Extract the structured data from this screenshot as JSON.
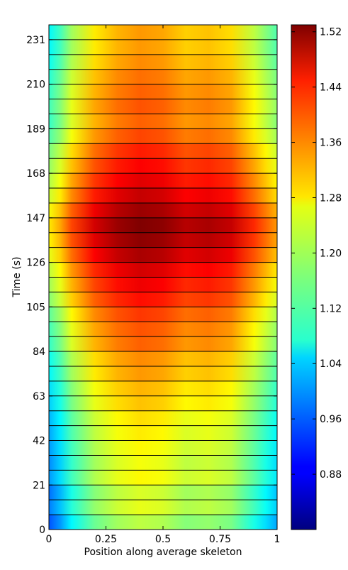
{
  "chart_data": {
    "type": "heatmap",
    "title": "",
    "xlabel": "Position along average skeleton",
    "ylabel": "Time (s)",
    "xlim": [
      0,
      1
    ],
    "ylim": [
      0,
      238
    ],
    "x_ticks": [
      0,
      0.25,
      0.5,
      0.75,
      1
    ],
    "x_tick_labels": [
      "0",
      "0.25",
      "0.5",
      "0.75",
      "1"
    ],
    "y_ticks": [
      0,
      21,
      42,
      63,
      84,
      105,
      126,
      147,
      168,
      189,
      210,
      231
    ],
    "y_tick_labels": [
      "0",
      "21",
      "42",
      "63",
      "84",
      "105",
      "126",
      "147",
      "168",
      "189",
      "210",
      "231"
    ],
    "colorbar": {
      "colormap": "jet",
      "vmin": 0.8,
      "vmax": 1.53,
      "ticks": [
        0.88,
        0.96,
        1.04,
        1.12,
        1.2,
        1.28,
        1.36,
        1.44,
        1.52
      ],
      "tick_labels": [
        "0.88",
        "0.96",
        "1.04",
        "1.12",
        "1.20",
        "1.28",
        "1.36",
        "1.44",
        "1.52"
      ]
    },
    "row_boundaries_s": [
      0,
      7,
      14,
      21,
      28,
      35,
      42,
      49,
      56,
      63,
      70,
      77,
      84,
      91,
      98,
      105,
      112,
      119,
      126,
      133,
      140,
      147,
      154,
      161,
      168,
      175,
      182,
      189,
      196,
      203,
      210,
      217,
      224,
      231,
      238
    ],
    "row_mean_values": [
      1.15,
      1.18,
      1.17,
      1.2,
      1.19,
      1.2,
      1.21,
      1.22,
      1.24,
      1.25,
      1.27,
      1.28,
      1.31,
      1.32,
      1.34,
      1.37,
      1.39,
      1.41,
      1.44,
      1.46,
      1.47,
      1.45,
      1.42,
      1.4,
      1.38,
      1.36,
      1.33,
      1.31,
      1.32,
      1.31,
      1.3,
      1.28,
      1.27,
      1.27
    ],
    "profile_positions": [
      0,
      0.05,
      0.1,
      0.2,
      0.3,
      0.4,
      0.5,
      0.6,
      0.7,
      0.8,
      0.9,
      0.95,
      1
    ],
    "profile_offsets": [
      -0.2,
      -0.15,
      -0.08,
      0.0,
      0.04,
      0.06,
      0.05,
      0.02,
      0.03,
      0.01,
      -0.06,
      -0.1,
      -0.14
    ]
  }
}
